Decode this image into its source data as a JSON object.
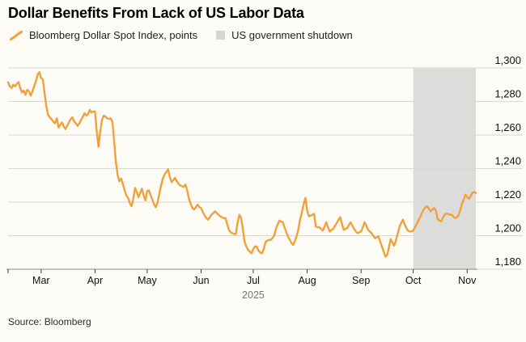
{
  "title": "Dollar Benefits From Lack of US Labor Data",
  "source": "Source: Bloomberg",
  "legend": [
    {
      "label": "Bloomberg Dollar Spot Index, points",
      "swatch": "orange-line-swatch",
      "color": "#f0a13c"
    },
    {
      "label": "US government shutdown",
      "swatch": "gray-square-swatch",
      "color": "#dcdcda"
    }
  ],
  "colors": {
    "line": "#f0a13c",
    "shutdown_band": "#dcdcda",
    "gridline": "#d9d7d1",
    "axis": "#8c8a85",
    "tick": "#3c3c3c",
    "background": "#fcfbf6"
  },
  "chart_data": {
    "type": "line",
    "title": "Dollar Benefits From Lack of US Labor Data",
    "ylabel": "Bloomberg Dollar Spot Index, points",
    "grid": "horizontal",
    "legend_position": "top-left",
    "y_axis": {
      "side": "right",
      "range": [
        1180,
        1300
      ],
      "ticks": [
        1300,
        1280,
        1260,
        1240,
        1220,
        1200,
        1180
      ],
      "labels": [
        "1,300",
        "1,280",
        "1,260",
        "1,240",
        "1,220",
        "1,200",
        "1,180"
      ]
    },
    "x_axis": {
      "note": "day index, day 0 = approx Feb 10 2025",
      "domain": [
        0,
        269
      ],
      "edge_tick_day": 0,
      "months": [
        {
          "label": "Mar",
          "day": 19
        },
        {
          "label": "Apr",
          "day": 50
        },
        {
          "label": "May",
          "day": 80
        },
        {
          "label": "Jun",
          "day": 111
        },
        {
          "label": "Jul",
          "day": 141
        },
        {
          "label": "Aug",
          "day": 172
        },
        {
          "label": "Sep",
          "day": 203
        },
        {
          "label": "Oct",
          "day": 233
        },
        {
          "label": "Nov",
          "day": 264
        }
      ],
      "year_label": "2025",
      "year_day": 141
    },
    "shutdown_region": {
      "label": "US government shutdown",
      "from_day": 233,
      "to_day": 269
    },
    "series": [
      {
        "name": "Bloomberg Dollar Spot Index, points",
        "color": "#f0a13c",
        "points": [
          [
            0,
            1291.5
          ],
          [
            1,
            1289
          ],
          [
            2,
            1288
          ],
          [
            3,
            1290
          ],
          [
            4,
            1289
          ],
          [
            5,
            1290.5
          ],
          [
            6,
            1291.5
          ],
          [
            7,
            1288
          ],
          [
            8,
            1285.5
          ],
          [
            9,
            1286.5
          ],
          [
            10,
            1284
          ],
          [
            11,
            1287
          ],
          [
            12,
            1286
          ],
          [
            13,
            1283.5
          ],
          [
            14,
            1286
          ],
          [
            15,
            1289
          ],
          [
            16,
            1292
          ],
          [
            17,
            1296
          ],
          [
            18,
            1297.5
          ],
          [
            19,
            1294
          ],
          [
            20,
            1293
          ],
          [
            21,
            1285
          ],
          [
            22,
            1277
          ],
          [
            23,
            1272
          ],
          [
            24,
            1270.5
          ],
          [
            25,
            1269.5
          ],
          [
            26,
            1268
          ],
          [
            27,
            1267
          ],
          [
            28,
            1270
          ],
          [
            29,
            1264.5
          ],
          [
            30,
            1266
          ],
          [
            31,
            1267.5
          ],
          [
            32,
            1265
          ],
          [
            33,
            1263.5
          ],
          [
            34,
            1265.5
          ],
          [
            35,
            1267.5
          ],
          [
            36,
            1269.5
          ],
          [
            37,
            1270.5
          ],
          [
            38,
            1268
          ],
          [
            39,
            1267
          ],
          [
            40,
            1265.5
          ],
          [
            41,
            1267
          ],
          [
            42,
            1269
          ],
          [
            43,
            1271
          ],
          [
            44,
            1273
          ],
          [
            45,
            1271.5
          ],
          [
            46,
            1272.5
          ],
          [
            47,
            1275
          ],
          [
            48,
            1273.5
          ],
          [
            49,
            1274
          ],
          [
            50,
            1274
          ],
          [
            51,
            1262
          ],
          [
            52,
            1253
          ],
          [
            53,
            1262
          ],
          [
            54,
            1269
          ],
          [
            55,
            1271.5
          ],
          [
            56,
            1271
          ],
          [
            57,
            1270
          ],
          [
            58,
            1269.5
          ],
          [
            59,
            1270
          ],
          [
            60,
            1268
          ],
          [
            61,
            1256
          ],
          [
            62,
            1244
          ],
          [
            63,
            1236
          ],
          [
            64,
            1232.5
          ],
          [
            65,
            1234
          ],
          [
            66,
            1231
          ],
          [
            67,
            1227
          ],
          [
            68,
            1224
          ],
          [
            69,
            1222.5
          ],
          [
            70,
            1219.5
          ],
          [
            71,
            1217.5
          ],
          [
            72,
            1222
          ],
          [
            73,
            1228.5
          ],
          [
            74,
            1226
          ],
          [
            75,
            1223
          ],
          [
            76,
            1225.5
          ],
          [
            77,
            1228
          ],
          [
            78,
            1224
          ],
          [
            79,
            1221
          ],
          [
            80,
            1226.5
          ],
          [
            81,
            1227
          ],
          [
            82,
            1224
          ],
          [
            83,
            1221.5
          ],
          [
            84,
            1218.5
          ],
          [
            85,
            1217
          ],
          [
            86,
            1220
          ],
          [
            87,
            1225
          ],
          [
            88,
            1230
          ],
          [
            89,
            1234
          ],
          [
            90,
            1236.5
          ],
          [
            91,
            1238
          ],
          [
            92,
            1239.5
          ],
          [
            93,
            1235
          ],
          [
            94,
            1232
          ],
          [
            95,
            1233
          ],
          [
            96,
            1234.5
          ],
          [
            97,
            1232.5
          ],
          [
            98,
            1231
          ],
          [
            99,
            1230
          ],
          [
            100,
            1229.5
          ],
          [
            101,
            1229
          ],
          [
            102,
            1230.5
          ],
          [
            103,
            1227
          ],
          [
            104,
            1222
          ],
          [
            105,
            1219
          ],
          [
            106,
            1216.5
          ],
          [
            107,
            1215.5
          ],
          [
            108,
            1217
          ],
          [
            109,
            1218.5
          ],
          [
            110,
            1217
          ],
          [
            111,
            1216.5
          ],
          [
            112,
            1214
          ],
          [
            113,
            1212
          ],
          [
            114,
            1210.5
          ],
          [
            115,
            1209.5
          ],
          [
            116,
            1211
          ],
          [
            117,
            1212.5
          ],
          [
            118,
            1213.5
          ],
          [
            119,
            1214.5
          ],
          [
            120,
            1213.5
          ],
          [
            121,
            1212.5
          ],
          [
            122,
            1211.5
          ],
          [
            123,
            1211
          ],
          [
            124,
            1210.5
          ],
          [
            125,
            1210.5
          ],
          [
            126,
            1207
          ],
          [
            127,
            1203.5
          ],
          [
            128,
            1202
          ],
          [
            129,
            1201.5
          ],
          [
            130,
            1201
          ],
          [
            131,
            1201
          ],
          [
            132,
            1208
          ],
          [
            133,
            1212.5
          ],
          [
            134,
            1210.5
          ],
          [
            135,
            1204
          ],
          [
            136,
            1196.5
          ],
          [
            137,
            1193.5
          ],
          [
            138,
            1191.5
          ],
          [
            139,
            1190.5
          ],
          [
            140,
            1189.5
          ],
          [
            141,
            1192
          ],
          [
            142,
            1193.5
          ],
          [
            143,
            1193.5
          ],
          [
            144,
            1191
          ],
          [
            145,
            1190
          ],
          [
            146,
            1189.5
          ],
          [
            147,
            1192
          ],
          [
            148,
            1196
          ],
          [
            149,
            1197
          ],
          [
            150,
            1197.5
          ],
          [
            151,
            1197.5
          ],
          [
            152,
            1198.5
          ],
          [
            153,
            1200
          ],
          [
            154,
            1204
          ],
          [
            155,
            1206.5
          ],
          [
            156,
            1209
          ],
          [
            157,
            1208.5
          ],
          [
            158,
            1208
          ],
          [
            159,
            1205
          ],
          [
            160,
            1202
          ],
          [
            161,
            1199.5
          ],
          [
            162,
            1197.5
          ],
          [
            163,
            1195.5
          ],
          [
            164,
            1194.5
          ],
          [
            165,
            1197
          ],
          [
            166,
            1200
          ],
          [
            167,
            1204
          ],
          [
            168,
            1210
          ],
          [
            169,
            1214
          ],
          [
            170,
            1219
          ],
          [
            171,
            1222.5
          ],
          [
            172,
            1215
          ],
          [
            173,
            1211.5
          ],
          [
            174,
            1212
          ],
          [
            175,
            1212.5
          ],
          [
            176,
            1213
          ],
          [
            177,
            1205.5
          ],
          [
            178,
            1205
          ],
          [
            179,
            1205
          ],
          [
            180,
            1204
          ],
          [
            181,
            1203
          ],
          [
            182,
            1205.5
          ],
          [
            183,
            1208
          ],
          [
            184,
            1205
          ],
          [
            185,
            1202.5
          ],
          [
            186,
            1203.5
          ],
          [
            187,
            1204
          ],
          [
            188,
            1206
          ],
          [
            189,
            1207.5
          ],
          [
            190,
            1209.5
          ],
          [
            191,
            1211
          ],
          [
            192,
            1207
          ],
          [
            193,
            1203.5
          ],
          [
            194,
            1204
          ],
          [
            195,
            1204.5
          ],
          [
            196,
            1206.5
          ],
          [
            197,
            1208
          ],
          [
            198,
            1206
          ],
          [
            199,
            1204
          ],
          [
            200,
            1202.5
          ],
          [
            201,
            1201.5
          ],
          [
            202,
            1202
          ],
          [
            203,
            1202.5
          ],
          [
            204,
            1205
          ],
          [
            205,
            1208
          ],
          [
            206,
            1206
          ],
          [
            207,
            1203.5
          ],
          [
            208,
            1202.5
          ],
          [
            209,
            1201.5
          ],
          [
            210,
            1200
          ],
          [
            211,
            1198.5
          ],
          [
            212,
            1199
          ],
          [
            213,
            1199.5
          ],
          [
            214,
            1196.5
          ],
          [
            215,
            1193.5
          ],
          [
            216,
            1190.5
          ],
          [
            217,
            1187.5
          ],
          [
            218,
            1188.5
          ],
          [
            219,
            1193
          ],
          [
            220,
            1198
          ],
          [
            221,
            1196
          ],
          [
            222,
            1194
          ],
          [
            223,
            1197
          ],
          [
            224,
            1201
          ],
          [
            225,
            1205
          ],
          [
            226,
            1207.5
          ],
          [
            227,
            1209.5
          ],
          [
            228,
            1207
          ],
          [
            229,
            1204.5
          ],
          [
            230,
            1203
          ],
          [
            231,
            1202.5
          ],
          [
            232,
            1202.5
          ],
          [
            233,
            1203
          ],
          [
            234,
            1205
          ],
          [
            235,
            1207
          ],
          [
            236,
            1209
          ],
          [
            237,
            1211
          ],
          [
            238,
            1213.5
          ],
          [
            239,
            1215.5
          ],
          [
            240,
            1217
          ],
          [
            241,
            1217.5
          ],
          [
            242,
            1216
          ],
          [
            243,
            1214.5
          ],
          [
            244,
            1215.5
          ],
          [
            245,
            1216.5
          ],
          [
            246,
            1215
          ],
          [
            247,
            1210
          ],
          [
            248,
            1209
          ],
          [
            249,
            1208.5
          ],
          [
            250,
            1210.5
          ],
          [
            251,
            1212.5
          ],
          [
            252,
            1213
          ],
          [
            253,
            1213
          ],
          [
            254,
            1212.5
          ],
          [
            255,
            1212.5
          ],
          [
            256,
            1211.5
          ],
          [
            257,
            1210.5
          ],
          [
            258,
            1211
          ],
          [
            259,
            1212
          ],
          [
            260,
            1215
          ],
          [
            261,
            1219
          ],
          [
            262,
            1221.5
          ],
          [
            263,
            1224.5
          ],
          [
            264,
            1223
          ],
          [
            265,
            1222
          ],
          [
            266,
            1223.5
          ],
          [
            267,
            1225.5
          ],
          [
            268,
            1226
          ],
          [
            269,
            1225.5
          ]
        ]
      }
    ]
  }
}
